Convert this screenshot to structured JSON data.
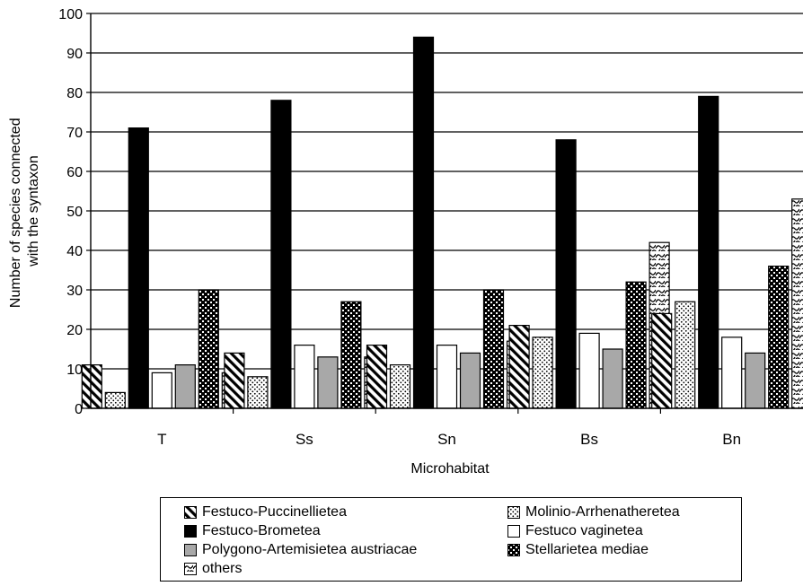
{
  "chart_data": {
    "type": "bar",
    "xlabel": "Microhabitat",
    "ylabel": "Number of species connected with the syntaxon",
    "ylabel_lines": [
      "Number of species connected",
      "with the syntaxon"
    ],
    "ylim": [
      0,
      100
    ],
    "yticks": [
      0,
      10,
      20,
      30,
      40,
      50,
      60,
      70,
      80,
      90,
      100
    ],
    "grid": true,
    "legend_position": "bottom",
    "categories": [
      "T",
      "Ss",
      "Sn",
      "Bs",
      "Bn"
    ],
    "series": [
      {
        "name": "Festuco-Puccinellietea",
        "pattern": "diagonal-stripes",
        "values": [
          11,
          14,
          16,
          21,
          24
        ]
      },
      {
        "name": "Molinio-Arrhenatheretea",
        "pattern": "dots",
        "values": [
          4,
          8,
          11,
          18,
          27
        ]
      },
      {
        "name": "Festuco-Brometea",
        "pattern": "solid-black",
        "values": [
          71,
          78,
          94,
          68,
          79
        ]
      },
      {
        "name": "Festuco vaginetea",
        "pattern": "white",
        "values": [
          9,
          16,
          16,
          19,
          18
        ]
      },
      {
        "name": "Polygono-Artemisietea austriacae",
        "pattern": "gray",
        "values": [
          11,
          13,
          14,
          15,
          14
        ]
      },
      {
        "name": "Stellarietea mediae",
        "pattern": "checker",
        "values": [
          30,
          27,
          30,
          32,
          36
        ]
      },
      {
        "name": "others",
        "pattern": "waves",
        "values": [
          9,
          13,
          17,
          42,
          53
        ]
      }
    ],
    "legend_order": [
      0,
      1,
      2,
      3,
      4,
      5,
      6
    ]
  },
  "colors": {
    "gray_fill": "#a8a8a8",
    "black_fill": "#000000"
  }
}
